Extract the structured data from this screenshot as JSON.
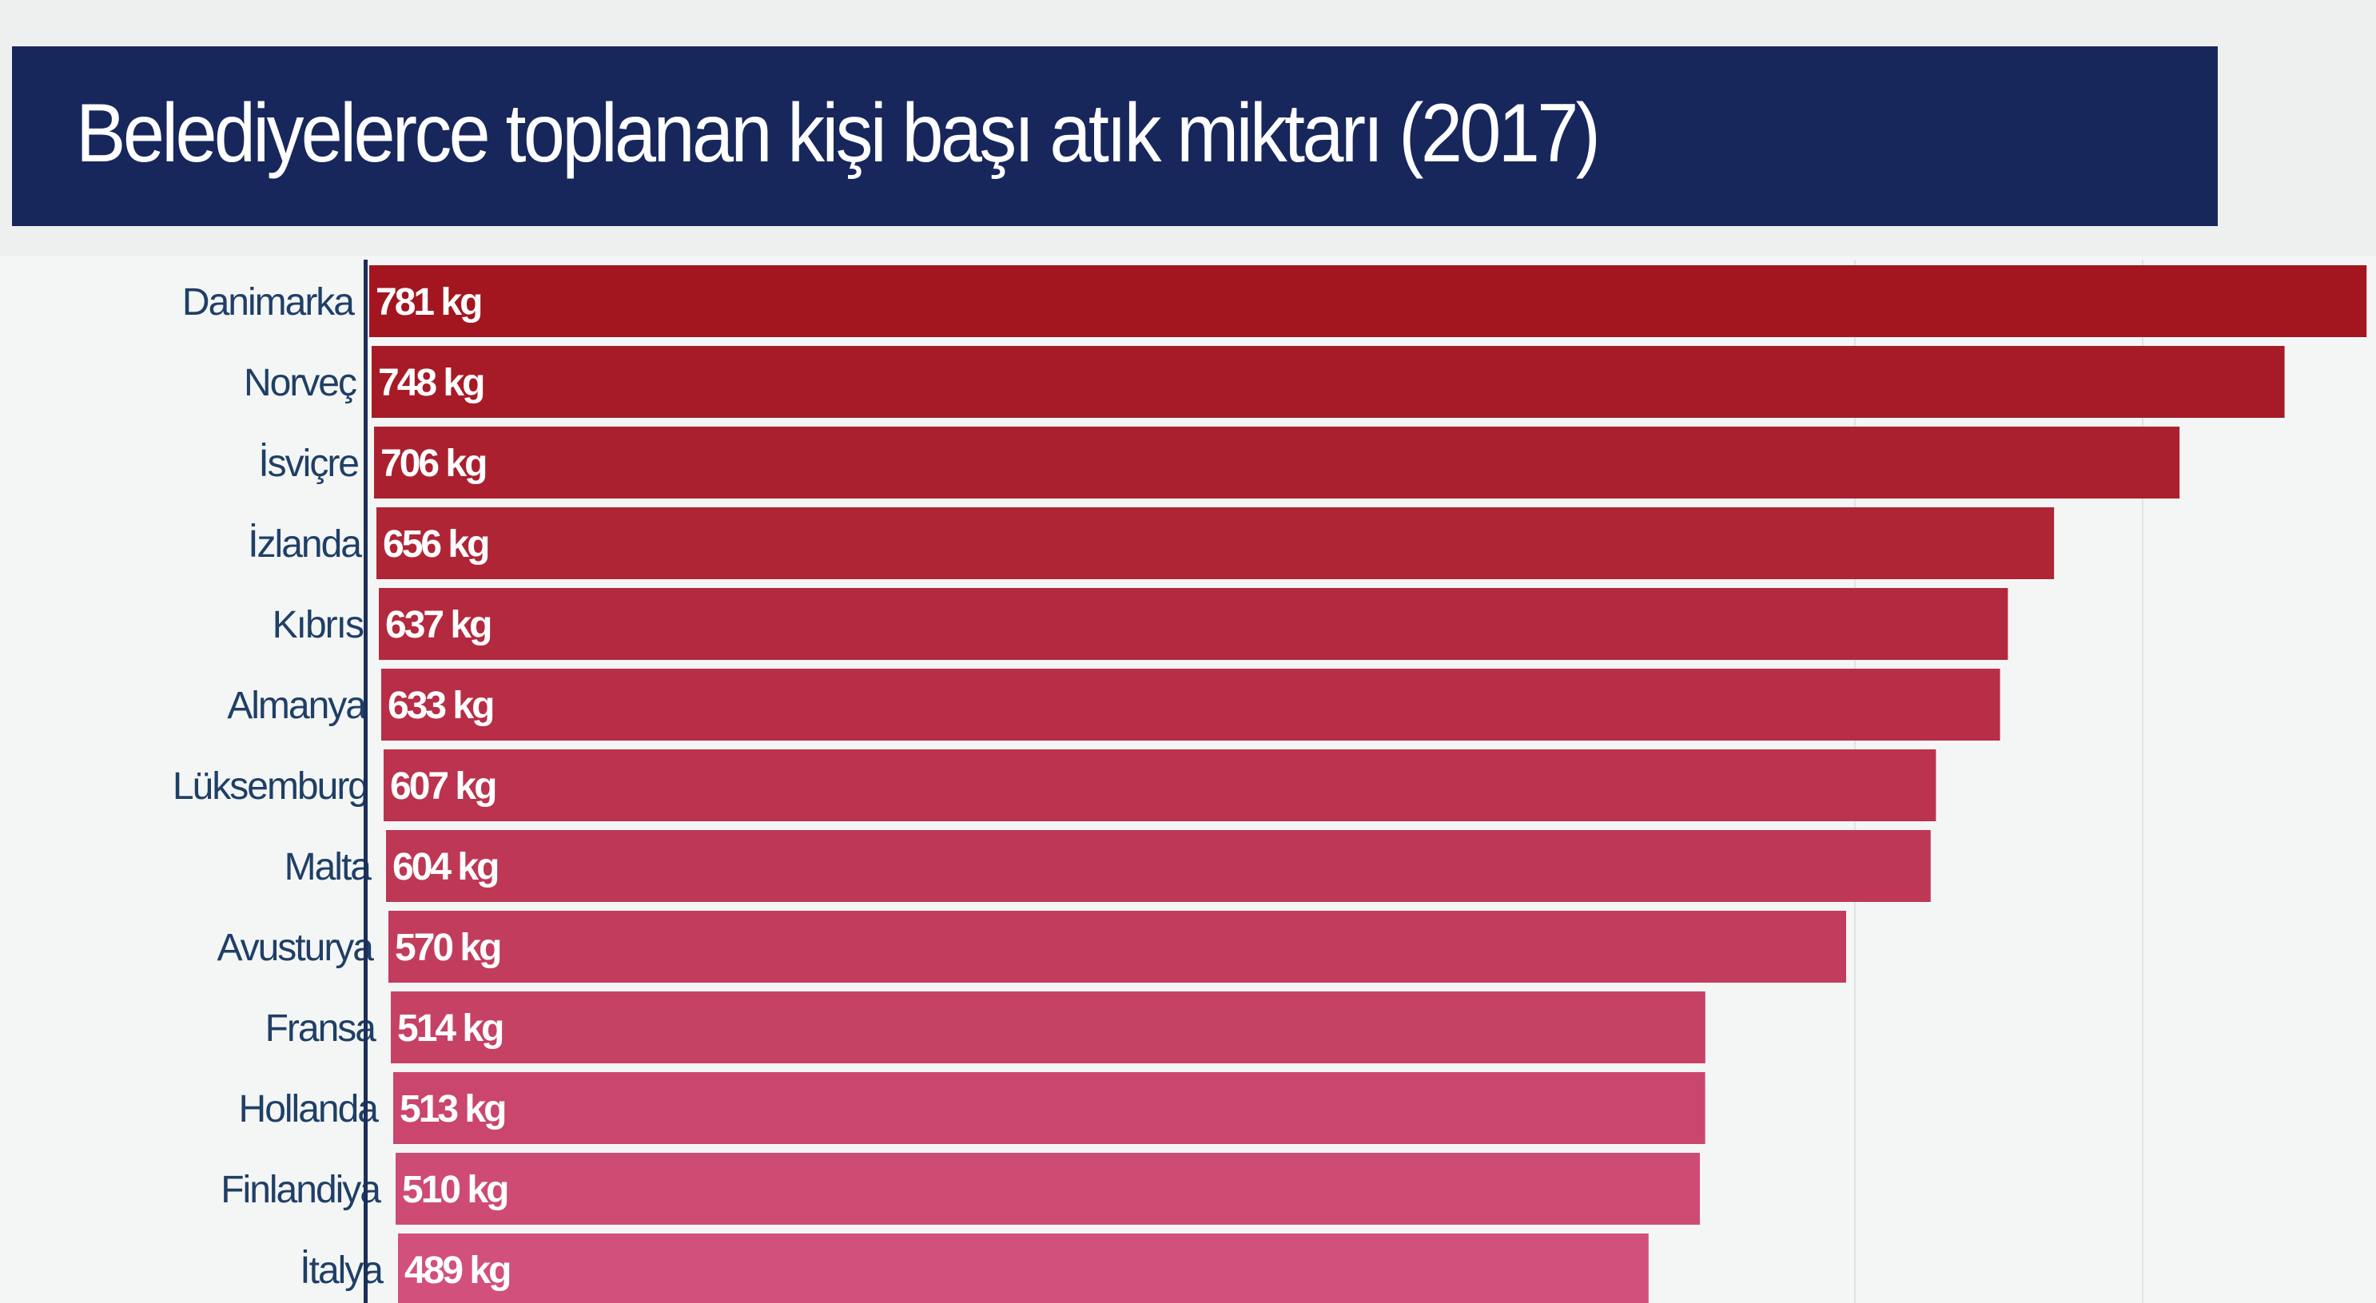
{
  "chart_data": {
    "type": "bar",
    "orientation": "horizontal",
    "title": "Belediyelerce toplanan kişi başı atık miktarı (2017)",
    "unit": "kg",
    "categories": [
      "Danimarka",
      "Norveç",
      "İsviçre",
      "İzlanda",
      "Kıbrıs",
      "Almanya",
      "Lüksemburg",
      "Malta",
      "Avusturya",
      "Fransa",
      "Hollanda",
      "Finlandiya",
      "İtalya"
    ],
    "values": [
      781,
      748,
      706,
      656,
      637,
      633,
      607,
      604,
      570,
      514,
      513,
      510,
      489
    ],
    "data_labels": [
      "781 kg",
      "748 kg",
      "706 kg",
      "656 kg",
      "637 kg",
      "633 kg",
      "607 kg",
      "604 kg",
      "570 kg",
      "514 kg",
      "513 kg",
      "510 kg",
      "489 kg"
    ],
    "colors": {
      "title_bg": "#17275c",
      "bar_top": "#a3161f",
      "bar_bottom": "#d2507c",
      "label": "#1f3f66"
    }
  }
}
